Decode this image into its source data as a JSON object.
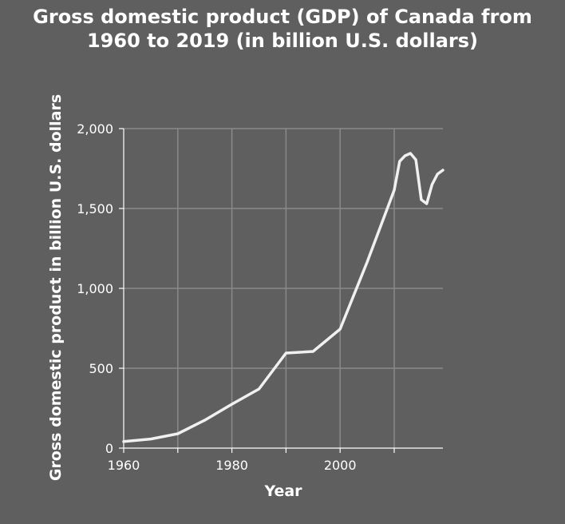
{
  "chart_data": {
    "type": "line",
    "title_line1": "Gross domestic product (GDP) of Canada from",
    "title_line2": "1960 to 2019 (in billion U.S. dollars)",
    "xlabel": "Year",
    "ylabel": "Gross domestic product in billion U.S. dollars",
    "xlim": [
      1960,
      2019
    ],
    "ylim": [
      0,
      2000
    ],
    "x_ticks": [
      1960,
      1970,
      1980,
      1990,
      2000,
      2010
    ],
    "x_tick_labels": [
      "1960",
      "",
      "1980",
      "",
      "2000",
      ""
    ],
    "y_ticks": [
      0,
      500,
      1000,
      1500,
      2000
    ],
    "y_tick_labels": [
      "0",
      "500",
      "1,000",
      "1,500",
      "2,000"
    ],
    "grid": true,
    "series": [
      {
        "x": [
          1960,
          1965,
          1970,
          1975,
          1980,
          1985,
          1990,
          1995,
          2000,
          2005,
          2010,
          2011,
          2012,
          2013,
          2014,
          2015,
          2016,
          2017,
          2018,
          2019
        ],
        "values": [
          41,
          57,
          90,
          175,
          275,
          370,
          595,
          605,
          745,
          1165,
          1615,
          1795,
          1830,
          1845,
          1805,
          1555,
          1530,
          1650,
          1715,
          1740
        ]
      }
    ],
    "colors": {
      "background": "#5f5f5f",
      "line": "#f0f0f0",
      "grid": "#8a8a8a",
      "text": "#ffffff"
    }
  }
}
